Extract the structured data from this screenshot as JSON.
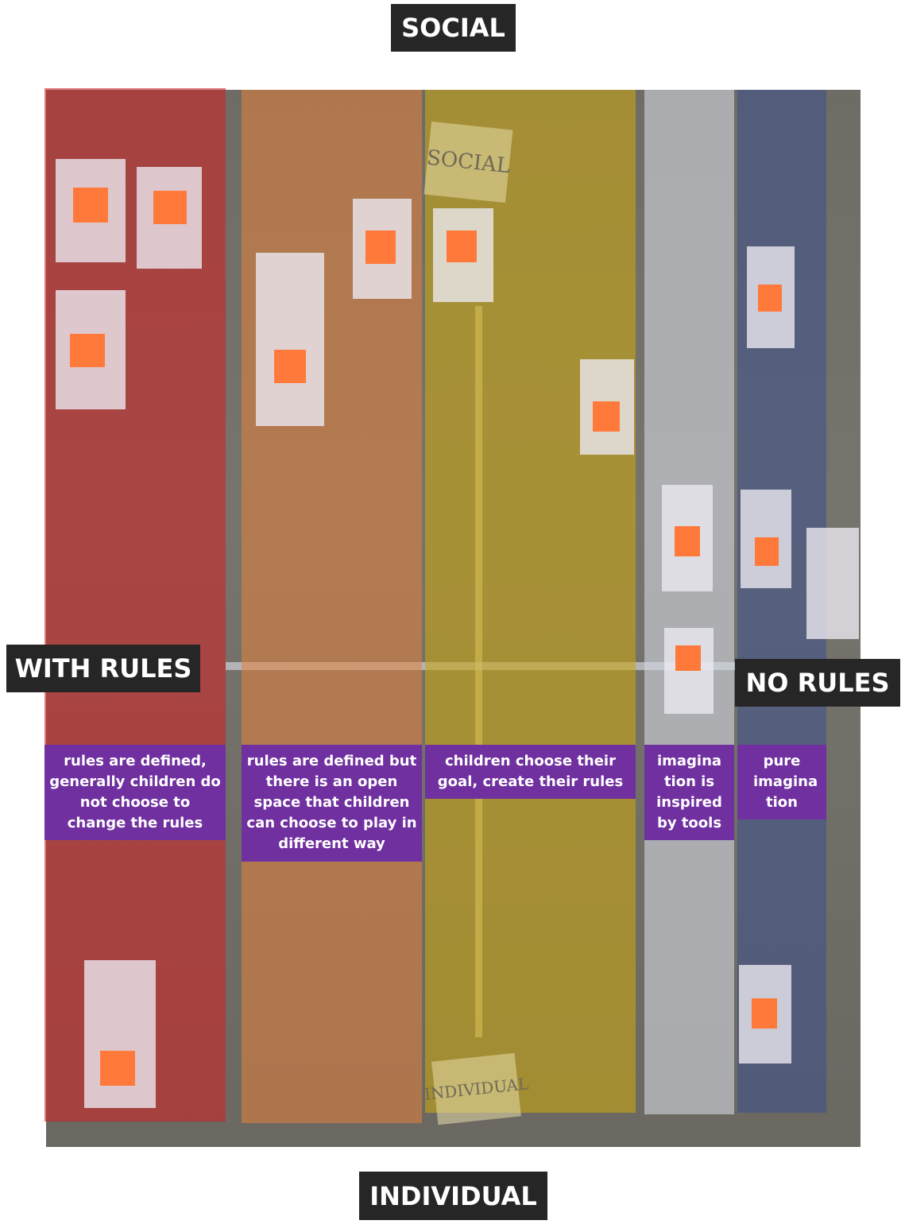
{
  "axes": {
    "top": "SOCIAL",
    "bottom": "INDIVIDUAL",
    "left": "WITH RULES",
    "right": "NO RULES"
  },
  "photo_notes": {
    "top": "SOCIAL",
    "bottom": "INDIVIDUAL"
  },
  "columns": [
    {
      "caption": "rules are defined, generally children do not choose to change the rules"
    },
    {
      "caption": "rules are defined but there is an open space that children can choose to play in different way"
    },
    {
      "caption": "children choose their goal, create their rules"
    },
    {
      "caption": "imagina tion is inspired by tools"
    },
    {
      "caption": "pure imagina tion"
    }
  ]
}
